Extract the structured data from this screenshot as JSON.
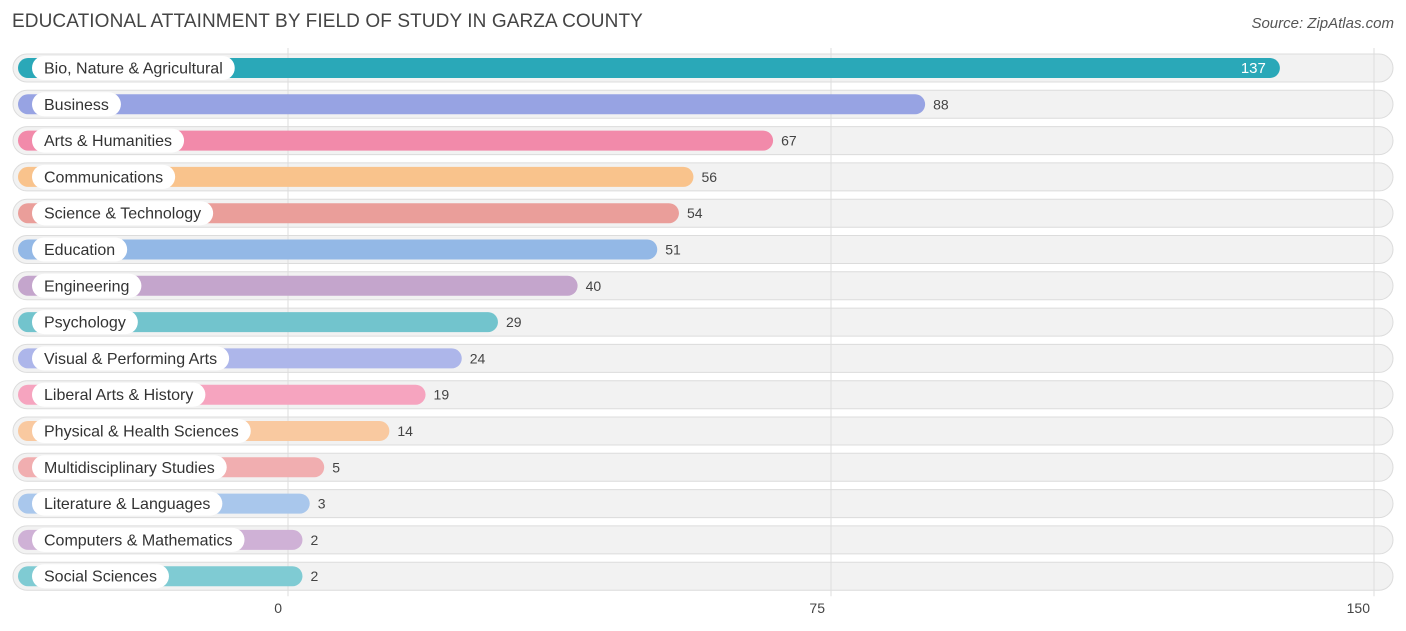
{
  "header": {
    "title": "EDUCATIONAL ATTAINMENT BY FIELD OF STUDY IN GARZA COUNTY",
    "source": "Source: ZipAtlas.com"
  },
  "chart_data": {
    "type": "bar",
    "orientation": "horizontal",
    "title": "EDUCATIONAL ATTAINMENT BY FIELD OF STUDY IN GARZA COUNTY",
    "xlabel": "",
    "ylabel": "",
    "xlim": [
      0,
      150
    ],
    "ticks": [
      0,
      75,
      150
    ],
    "grid": true,
    "categories": [
      "Bio, Nature & Agricultural",
      "Business",
      "Arts & Humanities",
      "Communications",
      "Science & Technology",
      "Education",
      "Engineering",
      "Psychology",
      "Visual & Performing Arts",
      "Liberal Arts & History",
      "Physical & Health Sciences",
      "Multidisciplinary Studies",
      "Literature & Languages",
      "Computers & Mathematics",
      "Social Sciences"
    ],
    "values": [
      137,
      88,
      67,
      56,
      54,
      51,
      40,
      29,
      24,
      19,
      14,
      5,
      3,
      2,
      2
    ],
    "colors": [
      "#2aa8b8",
      "#97a3e3",
      "#f28aaa",
      "#f9c38c",
      "#ea9e9a",
      "#93b8e6",
      "#c4a5cc",
      "#72c4cd",
      "#adb6ea",
      "#f6a4bf",
      "#f9c9a0",
      "#f1aeb0",
      "#a9c7ec",
      "#cfb1d6",
      "#7fcbd3"
    ]
  }
}
